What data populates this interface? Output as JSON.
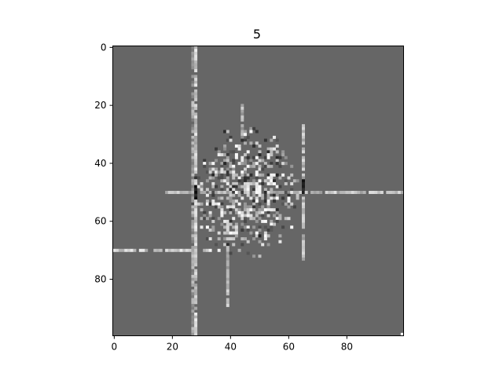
{
  "chart_data": {
    "type": "heatmap",
    "title": "5",
    "xlabel": "",
    "ylabel": "",
    "xlim": [
      0,
      99
    ],
    "ylim": [
      99,
      0
    ],
    "x_ticks": [
      0,
      20,
      40,
      60,
      80
    ],
    "y_ticks": [
      0,
      20,
      40,
      60,
      80
    ],
    "x_tick_labels": [
      "0",
      "20",
      "40",
      "60",
      "80"
    ],
    "y_tick_labels": [
      "0",
      "20",
      "40",
      "60",
      "80"
    ],
    "grid": false,
    "colormap": "gray",
    "background_value": 0.4,
    "features": [
      {
        "kind": "vline",
        "x": 28,
        "y_from": 0,
        "y_to": 99,
        "value": 0.78
      },
      {
        "kind": "vline",
        "x": 27,
        "y_from": 0,
        "y_to": 99,
        "value": 0.62
      },
      {
        "kind": "hline",
        "y": 50,
        "x_from": 18,
        "x_to": 99,
        "value": 0.75
      },
      {
        "kind": "hline",
        "y": 70,
        "x_from": 0,
        "x_to": 36,
        "value": 0.8
      },
      {
        "kind": "vline",
        "x": 65,
        "y_from": 27,
        "y_to": 73,
        "value": 0.72
      },
      {
        "kind": "vline",
        "x": 39,
        "y_from": 60,
        "y_to": 89,
        "value": 0.72
      },
      {
        "kind": "vline",
        "x": 44,
        "y_from": 20,
        "y_to": 32,
        "value": 0.7
      },
      {
        "kind": "blob",
        "cx": 45,
        "cy": 50,
        "rx": 19,
        "ry": 23,
        "density": 0.55
      },
      {
        "kind": "dark_spot",
        "x": 28,
        "y": 50,
        "value": 0.05
      },
      {
        "kind": "dark_spot",
        "x": 65,
        "y": 48,
        "value": 0.05
      }
    ],
    "colors": {
      "background": "#666666",
      "axes_edge": "#000000"
    }
  }
}
